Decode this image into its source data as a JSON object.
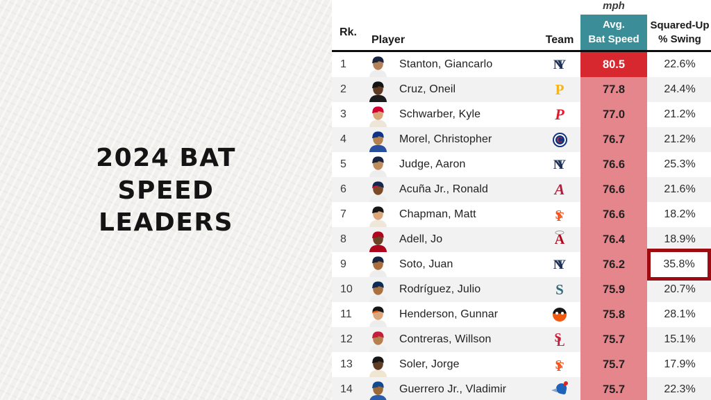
{
  "title_panel": {
    "lines": [
      "2024 BAT",
      "SPEED",
      "LEADERS"
    ]
  },
  "colors": {
    "panel_bg": "#f1f0ed",
    "speed_header_bg": "#3b8d98",
    "top_value_bg": "#d7282f",
    "value_bg": "#e5868c",
    "highlight_border": "#9c0c11",
    "header_rule": "#0d0d0d",
    "row_stripe": "#f2f2f2"
  },
  "table": {
    "unit_label": "mph",
    "headers": {
      "rank": "Rk.",
      "player": "Player",
      "team": "Team",
      "bat_speed": [
        "Avg.",
        "Bat Speed"
      ],
      "squared_up": [
        "Squared-Up",
        "% Swing"
      ]
    },
    "rows": [
      {
        "rank": "1",
        "player": "Stanton, Giancarlo",
        "team": "NYY",
        "bat_speed": "80.5",
        "squared_up": "22.6%",
        "highlight": false,
        "speed_bg": "#d7282f",
        "speed_color": "#ffffff",
        "avatar": {
          "cap": "#16243f",
          "bill": "#16243f",
          "skin": "#b3815a",
          "jersey": "#ededed"
        },
        "logo": {
          "type": "nyy",
          "color": "#1b2f56",
          "letters": [
            "N",
            "Y"
          ]
        }
      },
      {
        "rank": "2",
        "player": "Cruz, Oneil",
        "team": "PIT",
        "bat_speed": "77.8",
        "squared_up": "24.4%",
        "highlight": false,
        "speed_bg": "#e5868c",
        "speed_color": "#222222",
        "avatar": {
          "cap": "#141414",
          "bill": "#141414",
          "skin": "#5e3b21",
          "jersey": "#1c1c1c"
        },
        "logo": {
          "type": "pit",
          "color": "#f5b31c",
          "letters": [
            "P"
          ]
        }
      },
      {
        "rank": "3",
        "player": "Schwarber, Kyle",
        "team": "PHI",
        "bat_speed": "77.0",
        "squared_up": "21.2%",
        "highlight": false,
        "speed_bg": "#e5868c",
        "speed_color": "#222222",
        "avatar": {
          "cap": "#d50032",
          "bill": "#d50032",
          "skin": "#d9a77c",
          "jersey": "#ece5d8"
        },
        "logo": {
          "type": "phi",
          "color": "#e8182b",
          "letters": [
            "P"
          ]
        }
      },
      {
        "rank": "4",
        "player": "Morel, Christopher",
        "team": "CHC",
        "bat_speed": "76.7",
        "squared_up": "21.2%",
        "highlight": false,
        "speed_bg": "#e5868c",
        "speed_color": "#222222",
        "avatar": {
          "cap": "#0e3386",
          "bill": "#0e3386",
          "skin": "#b5824f",
          "jersey": "#2a4fa0"
        },
        "logo": {
          "type": "chc",
          "color": "#cc3433",
          "letters": [
            "C"
          ]
        }
      },
      {
        "rank": "5",
        "player": "Judge, Aaron",
        "team": "NYY",
        "bat_speed": "76.6",
        "squared_up": "25.3%",
        "highlight": false,
        "speed_bg": "#e5868c",
        "speed_color": "#222222",
        "avatar": {
          "cap": "#16243f",
          "bill": "#16243f",
          "skin": "#c08d5e",
          "jersey": "#ededed"
        },
        "logo": {
          "type": "nyy",
          "color": "#1b2f56",
          "letters": [
            "N",
            "Y"
          ]
        }
      },
      {
        "rank": "6",
        "player": "Acuña Jr., Ronald",
        "team": "ATL",
        "bat_speed": "76.6",
        "squared_up": "21.6%",
        "highlight": false,
        "speed_bg": "#e5868c",
        "speed_color": "#222222",
        "avatar": {
          "cap": "#13274f",
          "bill": "#ce1141",
          "skin": "#7a4a26",
          "jersey": "#ededed"
        },
        "logo": {
          "type": "atl",
          "color": "#b11e3c",
          "letters": [
            "A"
          ]
        }
      },
      {
        "rank": "7",
        "player": "Chapman, Matt",
        "team": "SF",
        "bat_speed": "76.6",
        "squared_up": "18.2%",
        "highlight": false,
        "speed_bg": "#e5868c",
        "speed_color": "#222222",
        "avatar": {
          "cap": "#161616",
          "bill": "#161616",
          "skin": "#dba87e",
          "jersey": "#efe8da"
        },
        "logo": {
          "type": "sf",
          "color": "#f4531d",
          "letters": [
            "S",
            "F"
          ]
        }
      },
      {
        "rank": "8",
        "player": "Adell, Jo",
        "team": "LAA",
        "bat_speed": "76.4",
        "squared_up": "18.9%",
        "highlight": false,
        "speed_bg": "#e5868c",
        "speed_color": "#222222",
        "avatar": {
          "cap": "#b0061d",
          "bill": "#b0061d",
          "skin": "#6b4226",
          "jersey": "#b0061d"
        },
        "logo": {
          "type": "laa",
          "color": "#b0061d",
          "letters": [
            "A"
          ]
        }
      },
      {
        "rank": "9",
        "player": "Soto, Juan",
        "team": "NYY",
        "bat_speed": "76.2",
        "squared_up": "35.8%",
        "highlight": true,
        "speed_bg": "#e5868c",
        "speed_color": "#222222",
        "avatar": {
          "cap": "#16243f",
          "bill": "#16243f",
          "skin": "#a96f3f",
          "jersey": "#ededed"
        },
        "logo": {
          "type": "nyy",
          "color": "#1b2f56",
          "letters": [
            "N",
            "Y"
          ]
        }
      },
      {
        "rank": "10",
        "player": "Rodríguez, Julio",
        "team": "SEA",
        "bat_speed": "75.9",
        "squared_up": "20.7%",
        "highlight": false,
        "speed_bg": "#e5868c",
        "speed_color": "#222222",
        "avatar": {
          "cap": "#0c2c56",
          "bill": "#0c2c56",
          "skin": "#a9713f",
          "jersey": "#ededed"
        },
        "logo": {
          "type": "sea",
          "color": "#33697a",
          "letters": [
            "S"
          ]
        }
      },
      {
        "rank": "11",
        "player": "Henderson, Gunnar",
        "team": "BAL",
        "bat_speed": "75.8",
        "squared_up": "28.1%",
        "highlight": false,
        "speed_bg": "#e5868c",
        "speed_color": "#222222",
        "avatar": {
          "cap": "#161616",
          "bill": "#f05a10",
          "skin": "#dba87e",
          "jersey": "#ededed"
        },
        "logo": {
          "type": "bal",
          "color": "#f05a10",
          "letters": []
        }
      },
      {
        "rank": "12",
        "player": "Contreras, Willson",
        "team": "STL",
        "bat_speed": "75.7",
        "squared_up": "15.1%",
        "highlight": false,
        "speed_bg": "#e5868c",
        "speed_color": "#222222",
        "avatar": {
          "cap": "#c41e3a",
          "bill": "#c41e3a",
          "skin": "#b5804e",
          "jersey": "#ededed"
        },
        "logo": {
          "type": "stl",
          "color": "#c41e3a",
          "letters": [
            "S",
            "L"
          ]
        }
      },
      {
        "rank": "13",
        "player": "Soler, Jorge",
        "team": "SF",
        "bat_speed": "75.7",
        "squared_up": "17.9%",
        "highlight": false,
        "speed_bg": "#e5868c",
        "speed_color": "#222222",
        "avatar": {
          "cap": "#161616",
          "bill": "#161616",
          "skin": "#5f3d22",
          "jersey": "#efe5d0"
        },
        "logo": {
          "type": "sf",
          "color": "#f4531d",
          "letters": [
            "S",
            "F"
          ]
        }
      },
      {
        "rank": "14",
        "player": "Guerrero Jr., Vladimir",
        "team": "TOR",
        "bat_speed": "75.7",
        "squared_up": "22.3%",
        "highlight": false,
        "speed_bg": "#e5868c",
        "speed_color": "#222222",
        "avatar": {
          "cap": "#134a8e",
          "bill": "#134a8e",
          "skin": "#9c6a38",
          "jersey": "#2a5cab"
        },
        "logo": {
          "type": "tor",
          "color": "#1d63ba",
          "letters": []
        }
      }
    ]
  },
  "chart_data": {
    "type": "table",
    "title": "2024 Bat Speed Leaders",
    "unit": "mph",
    "columns": [
      "Rk.",
      "Player",
      "Team",
      "Avg. Bat Speed (mph)",
      "Squared-Up % Swing"
    ],
    "rows": [
      [
        1,
        "Stanton, Giancarlo",
        "NYY",
        80.5,
        "22.6%"
      ],
      [
        2,
        "Cruz, Oneil",
        "PIT",
        77.8,
        "24.4%"
      ],
      [
        3,
        "Schwarber, Kyle",
        "PHI",
        77.0,
        "21.2%"
      ],
      [
        4,
        "Morel, Christopher",
        "CHC",
        76.7,
        "21.2%"
      ],
      [
        5,
        "Judge, Aaron",
        "NYY",
        76.6,
        "25.3%"
      ],
      [
        6,
        "Acuña Jr., Ronald",
        "ATL",
        76.6,
        "21.6%"
      ],
      [
        7,
        "Chapman, Matt",
        "SF",
        76.6,
        "18.2%"
      ],
      [
        8,
        "Adell, Jo",
        "LAA",
        76.4,
        "18.9%"
      ],
      [
        9,
        "Soto, Juan",
        "NYY",
        76.2,
        "35.8%"
      ],
      [
        10,
        "Rodríguez, Julio",
        "SEA",
        75.9,
        "20.7%"
      ],
      [
        11,
        "Henderson, Gunnar",
        "BAL",
        75.8,
        "28.1%"
      ],
      [
        12,
        "Contreras, Willson",
        "STL",
        75.7,
        "15.1%"
      ],
      [
        13,
        "Soler, Jorge",
        "SF",
        75.7,
        "17.9%"
      ],
      [
        14,
        "Guerrero Jr., Vladimir",
        "TOR",
        75.7,
        "22.3%"
      ]
    ],
    "highlighted_cell": {
      "row_rank": 9,
      "player": "Soto, Juan",
      "column": "Squared-Up % Swing",
      "value": "35.8%"
    },
    "layout": {
      "heat_column": "Avg. Bat Speed",
      "top_value_emphasis": true,
      "row_striping": true
    }
  }
}
